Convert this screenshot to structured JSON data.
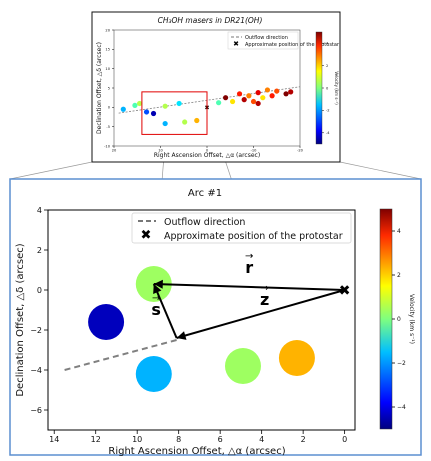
{
  "chart_data": [
    {
      "type": "scatter",
      "panel": "overview",
      "title": "CH₃OH masers in DR21(OH)",
      "xlabel": "Right Ascension Offset, △α (arcsec)",
      "ylabel": "Declination Offset, △δ (arcsec)",
      "xlim": [
        20,
        -20
      ],
      "ylim": [
        -10,
        20
      ],
      "xticks": [
        20,
        10,
        0,
        -10,
        -20
      ],
      "xtick_labels": [
        "20",
        "10",
        "0",
        "-10",
        "-20"
      ],
      "yticks": [
        20,
        15,
        10,
        5,
        0,
        -5,
        -10
      ],
      "ytick_labels": [
        "20",
        "15",
        "10",
        "5",
        "0",
        "-5",
        "-10"
      ],
      "legend": {
        "placement": "top-right",
        "entries": [
          "Outflow direction",
          "Approximate position of the protostar"
        ]
      },
      "colorbar": {
        "label": "Velocity (km s⁻¹)",
        "range": [
          -5,
          5
        ],
        "ticks": [
          4,
          2,
          0,
          -2,
          -4
        ],
        "tick_labels": [
          "4",
          "2",
          "0",
          "-2",
          "-4"
        ]
      },
      "outflow_line": {
        "x": [
          19,
          -21
        ],
        "y": [
          -1.5,
          5.5
        ]
      },
      "protostar": {
        "x": 0,
        "y": 0
      },
      "highlight_box": {
        "x": [
          14,
          0
        ],
        "y": [
          -7,
          4
        ]
      },
      "masers": [
        {
          "x": 18,
          "y": -0.5,
          "v": -2.0
        },
        {
          "x": 15.5,
          "y": 0.5,
          "v": -0.5
        },
        {
          "x": 14.5,
          "y": 1.0,
          "v": 0.5
        },
        {
          "x": 13,
          "y": -1.2,
          "v": -3.0
        },
        {
          "x": 11.5,
          "y": -1.6,
          "v": -4.5
        },
        {
          "x": 9,
          "y": 0.3,
          "v": 0.5
        },
        {
          "x": 9,
          "y": -4.2,
          "v": -2.0
        },
        {
          "x": 6,
          "y": 1.0,
          "v": -1.5
        },
        {
          "x": 4.8,
          "y": -3.8,
          "v": 0.5
        },
        {
          "x": 2.2,
          "y": -3.4,
          "v": 2.0
        },
        {
          "x": -2.5,
          "y": 1.2,
          "v": -0.5
        },
        {
          "x": -4,
          "y": 2.5,
          "v": 5.0
        },
        {
          "x": -5.5,
          "y": 1.5,
          "v": 1.5
        },
        {
          "x": -7,
          "y": 3.5,
          "v": 3.5
        },
        {
          "x": -8,
          "y": 2.0,
          "v": 4.5
        },
        {
          "x": -9,
          "y": 3.0,
          "v": 2.5
        },
        {
          "x": -10,
          "y": 1.5,
          "v": 3.0
        },
        {
          "x": -11,
          "y": 3.8,
          "v": 4.0
        },
        {
          "x": -12,
          "y": 2.5,
          "v": 1.5
        },
        {
          "x": -13,
          "y": 4.5,
          "v": 2.5
        },
        {
          "x": -14,
          "y": 3.0,
          "v": 3.5
        },
        {
          "x": -15,
          "y": 4.2,
          "v": 3.0
        },
        {
          "x": -11,
          "y": 1.0,
          "v": 4.5
        },
        {
          "x": -17,
          "y": 3.5,
          "v": 5.0
        },
        {
          "x": -18,
          "y": 4.0,
          "v": 4.5
        }
      ]
    },
    {
      "type": "scatter",
      "panel": "zoom",
      "title": "Arc #1",
      "xlabel": "Right Ascension Offset, △α (arcsec)",
      "ylabel": "Declination Offset, △δ (arcsec)",
      "xlim": [
        14.3,
        -0.5
      ],
      "ylim": [
        -7,
        4
      ],
      "xticks": [
        14,
        12,
        10,
        8,
        6,
        4,
        2,
        0
      ],
      "xtick_labels": [
        "14",
        "12",
        "10",
        "8",
        "6",
        "4",
        "2",
        "0"
      ],
      "yticks": [
        4,
        2,
        0,
        -2,
        -4,
        -6
      ],
      "ytick_labels": [
        "4",
        "2",
        "0",
        "−2",
        "−4",
        "−6"
      ],
      "legend": {
        "placement": "top-right",
        "entries": [
          "Outflow direction",
          "Approximate position of the protostar"
        ]
      },
      "colorbar": {
        "label": "Velocity (km s⁻¹)",
        "range": [
          -5,
          5
        ],
        "ticks": [
          4,
          2,
          0,
          -2,
          -4
        ],
        "tick_labels": [
          "4",
          "2",
          "0",
          "−2",
          "−4"
        ]
      },
      "outflow_line": {
        "x": [
          13.5,
          8.1
        ],
        "y": [
          -4.0,
          -2.5
        ]
      },
      "protostar": {
        "x": 0,
        "y": 0
      },
      "masers": [
        {
          "x": 11.5,
          "y": -1.6,
          "v": -4.4
        },
        {
          "x": 9.2,
          "y": 0.3,
          "v": 0.3
        },
        {
          "x": 9.2,
          "y": -4.2,
          "v": -2.0
        },
        {
          "x": 4.9,
          "y": -3.8,
          "v": 0.3
        },
        {
          "x": 2.3,
          "y": -3.4,
          "v": 2.0
        }
      ],
      "vectors": [
        {
          "label": "r",
          "from": [
            0,
            0
          ],
          "to": [
            9.2,
            0.3
          ]
        },
        {
          "label": "s",
          "from": [
            8.1,
            -2.4
          ],
          "to": [
            9.2,
            0.3
          ]
        },
        {
          "label": "z",
          "from": [
            0,
            0
          ],
          "to": [
            8.1,
            -2.4
          ]
        }
      ]
    }
  ]
}
